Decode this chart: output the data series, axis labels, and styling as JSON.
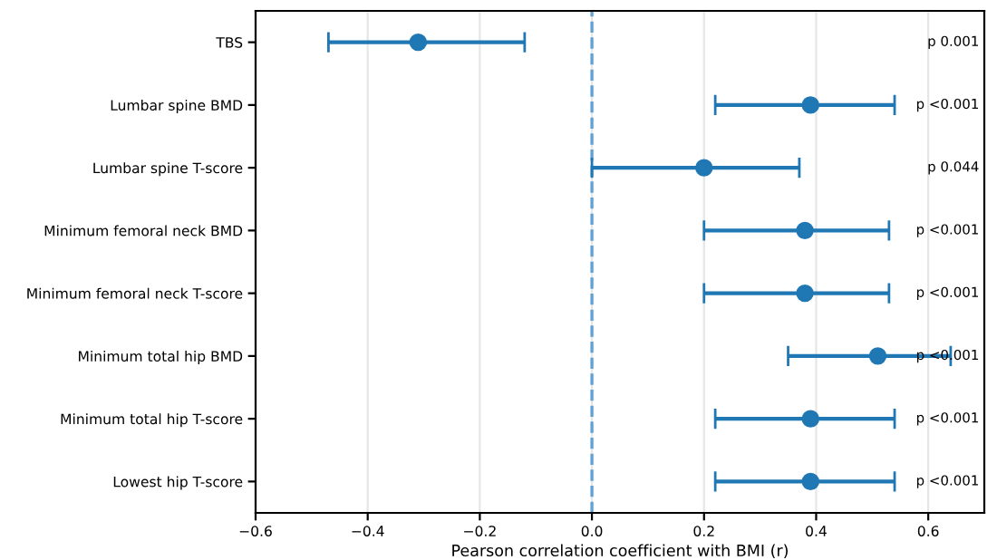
{
  "chart_data": {
    "type": "scatter",
    "orientation": "horizontal",
    "categories": [
      "TBS",
      "Lumbar spine BMD",
      "Lumbar spine T-score",
      "Minimum femoral neck BMD",
      "Minimum femoral neck T-score",
      "Minimum total hip BMD",
      "Minimum total hip T-score",
      "Lowest hip T-score"
    ],
    "series": [
      {
        "color": "#1f77b4",
        "values": [
          -0.31,
          0.39,
          0.2,
          0.38,
          0.38,
          0.51,
          0.39,
          0.39
        ],
        "errors": [
          [
            -0.47,
            -0.12
          ],
          [
            0.22,
            0.54
          ],
          [
            0.0,
            0.37
          ],
          [
            0.2,
            0.53
          ],
          [
            0.2,
            0.53
          ],
          [
            0.35,
            0.64
          ],
          [
            0.22,
            0.54
          ],
          [
            0.22,
            0.54
          ]
        ]
      }
    ],
    "xlabel": "Pearson correlation coefficient with BMI (r)",
    "xlim": [
      -0.6,
      0.7
    ],
    "xticks": [
      {
        "value": -0.6,
        "label": "−0.6"
      },
      {
        "value": -0.4,
        "label": "−0.4"
      },
      {
        "value": -0.2,
        "label": "−0.2"
      },
      {
        "value": 0,
        "label": "0.0"
      },
      0.2,
      0.4,
      0.6
    ],
    "grid": "x",
    "marker": "circle",
    "legend": false,
    "ref_lines": [
      {
        "axis": "x",
        "value": 0,
        "color": "#5fa2d8",
        "line_style": "dashed"
      }
    ],
    "annotations": [
      "p 0.001",
      "p <0.001",
      "p 0.044",
      "p <0.001",
      "p <0.001",
      "p <0.001",
      "p <0.001",
      "p <0.001"
    ]
  }
}
